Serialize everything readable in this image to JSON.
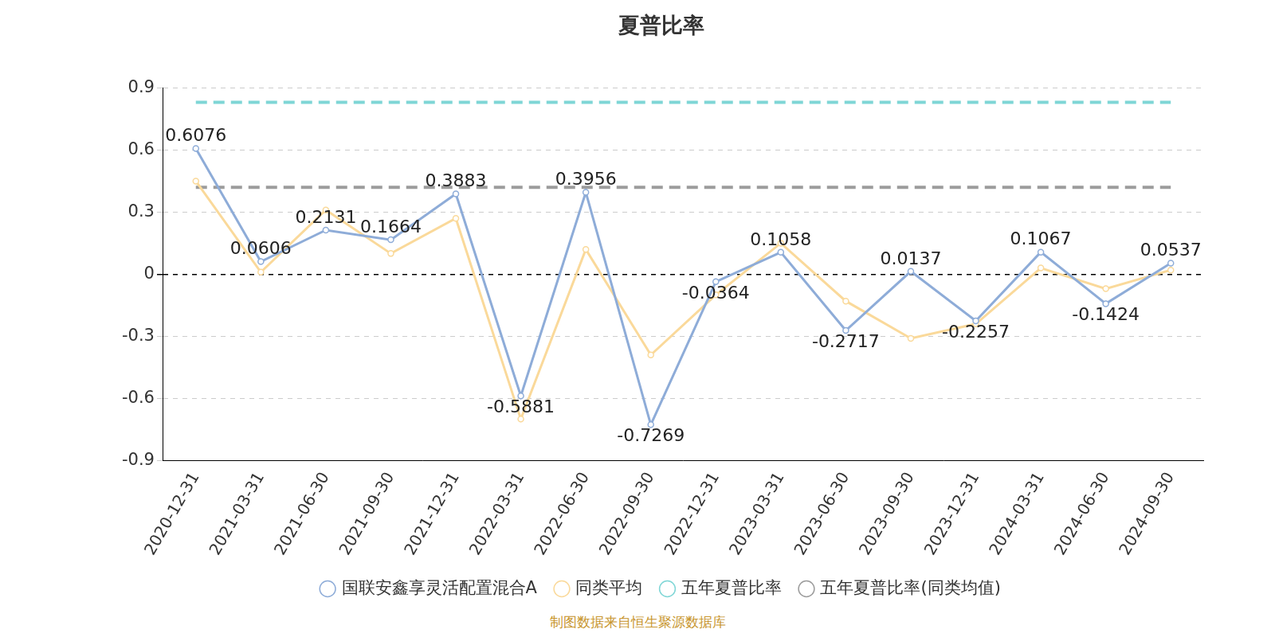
{
  "chart_data": {
    "type": "line",
    "title": "夏普比率",
    "annotation": "制图数据来自恒生聚源数据库",
    "categories": [
      "2020-12-31",
      "2021-03-31",
      "2021-06-30",
      "2021-09-30",
      "2021-12-31",
      "2022-03-31",
      "2022-06-30",
      "2022-09-30",
      "2022-12-31",
      "2023-03-31",
      "2023-06-30",
      "2023-09-30",
      "2023-12-31",
      "2024-03-31",
      "2024-06-30",
      "2024-09-30"
    ],
    "series": [
      {
        "name": "国联安鑫享灵活配置混合A",
        "color": "#8eacd8",
        "marker": "circle",
        "line_style": "solid",
        "data_labels": true,
        "values": [
          0.6076,
          0.0606,
          0.2131,
          0.1664,
          0.3883,
          -0.5881,
          0.3956,
          -0.7269,
          -0.0364,
          0.1058,
          -0.2717,
          0.0137,
          -0.2257,
          0.1067,
          -0.1424,
          0.0537
        ]
      },
      {
        "name": "同类平均",
        "color": "#fad99a",
        "marker": "circle",
        "line_style": "solid",
        "values": [
          0.45,
          0.01,
          0.31,
          0.1,
          0.27,
          -0.7,
          0.12,
          -0.39,
          -0.1,
          0.15,
          -0.13,
          -0.31,
          -0.24,
          0.03,
          -0.07,
          0.02
        ]
      },
      {
        "name": "五年夏普比率",
        "color": "#7fd6d6",
        "marker": "none",
        "line_style": "dashed",
        "values": [
          0.83,
          0.83,
          0.83,
          0.83,
          0.83,
          0.83,
          0.83,
          0.83,
          0.83,
          0.83,
          0.83,
          0.83,
          0.83,
          0.83,
          0.83,
          0.83
        ]
      },
      {
        "name": "五年夏普比率(同类均值)",
        "color": "#9c9c9c",
        "marker": "none",
        "line_style": "dashed",
        "values": [
          0.42,
          0.42,
          0.42,
          0.42,
          0.42,
          0.42,
          0.42,
          0.42,
          0.42,
          0.42,
          0.42,
          0.42,
          0.42,
          0.42,
          0.42,
          0.42
        ]
      }
    ],
    "ylim": [
      -0.9,
      0.9
    ],
    "yticks": [
      -0.9,
      -0.6,
      -0.3,
      0,
      0.3,
      0.6,
      0.9
    ],
    "grid": true,
    "legend": "bottom"
  }
}
